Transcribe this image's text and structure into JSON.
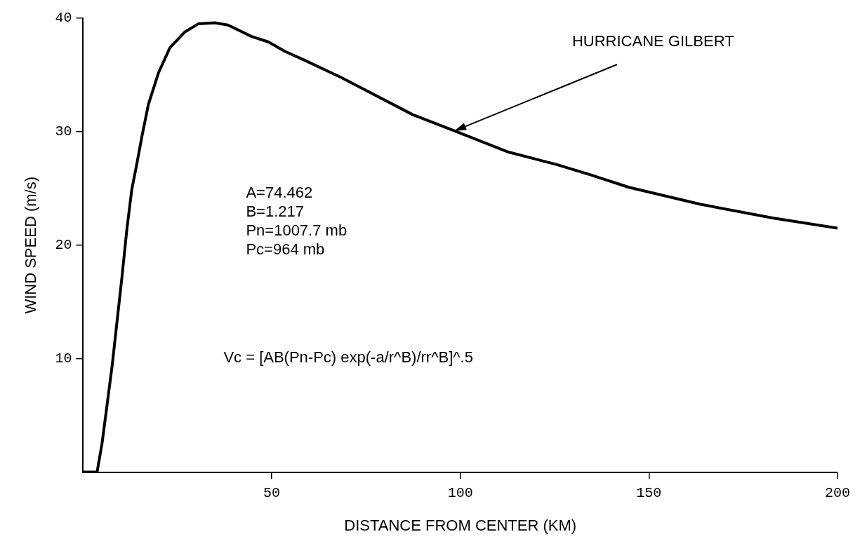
{
  "chart_data": {
    "type": "line",
    "xlabel": "DISTANCE FROM CENTER (KM)",
    "ylabel": "WIND SPEED (m/s)",
    "xlim": [
      0,
      200
    ],
    "xticks": [
      50,
      100,
      150,
      200
    ],
    "ylim": [
      0,
      40
    ],
    "yticks": [
      10,
      20,
      30,
      40
    ],
    "grid": false,
    "legend": false,
    "marker": "none",
    "line_style": "solid",
    "series": [
      {
        "color": "#000000",
        "x": [
          0,
          3.7,
          5.0,
          6.3,
          7.7,
          9.0,
          10.3,
          11.6,
          12.9,
          14.2,
          15.6,
          17.3,
          20.0,
          23.0,
          27.0,
          30.5,
          34.9,
          38.4,
          44.6,
          49.2,
          53.4,
          58.7,
          68.3,
          87.4,
          98.3,
          112.8,
          125.6,
          134.5,
          144.7,
          163.7,
          182.8,
          200
        ],
        "values": [
          0,
          0,
          2.5,
          5.8,
          9.4,
          13.3,
          17.2,
          21.4,
          24.9,
          27.1,
          29.6,
          32.4,
          35.2,
          37.4,
          38.8,
          39.5,
          39.6,
          39.4,
          38.4,
          37.9,
          37.1,
          36.3,
          34.8,
          31.5,
          30.1,
          28.2,
          27.1,
          26.2,
          25.1,
          23.6,
          22.4,
          21.5
        ]
      }
    ],
    "annotations": [
      {
        "text": "HURRICANE GILBERT",
        "x": 98,
        "y": 30
      },
      "A=74.462\nB=1.217\nPn=1007.7 mb\nPc=964 mb",
      "Vc = [AB(Pn-Pc) exp(-a/r^B)/rr^B]^.5"
    ]
  }
}
